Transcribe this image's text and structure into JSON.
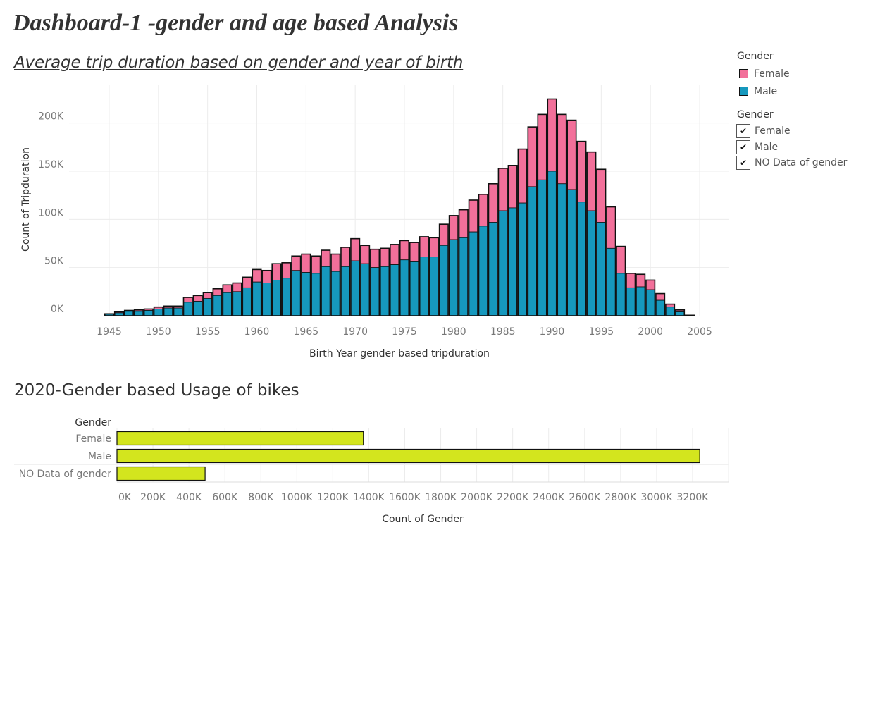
{
  "dashboard": {
    "title": "Dashboard-1 -gender and age based Analysis",
    "sheet1_title": "Average trip duration based on gender and year of birth",
    "sheet2_title": "2020-Gender based Usage of bikes"
  },
  "legend": {
    "title": "Gender",
    "items": [
      {
        "label": "Female",
        "color": "#f2709a"
      },
      {
        "label": "Male",
        "color": "#1698bd"
      }
    ]
  },
  "filter": {
    "title": "Gender",
    "items": [
      {
        "label": "NO Data of gender",
        "checked": true
      },
      {
        "label": "Female",
        "checked": true
      },
      {
        "label": "Male",
        "checked": true
      }
    ],
    "check_glyph": "✔"
  },
  "chart_data": [
    {
      "type": "bar",
      "stacked": true,
      "xlabel": "Birth Year  gender based tripduration",
      "ylabel": "Count of Tripduration",
      "ylim": [
        0,
        240000
      ],
      "yticks": [
        0,
        50000,
        100000,
        150000,
        200000
      ],
      "ytick_labels": [
        "0K",
        "50K",
        "100K",
        "150K",
        "200K"
      ],
      "xticks": [
        1945,
        1950,
        1955,
        1960,
        1965,
        1970,
        1975,
        1980,
        1985,
        1990,
        1995,
        2000,
        2005
      ],
      "grid": true,
      "legend_position": "top-right",
      "x": [
        1945,
        1946,
        1947,
        1948,
        1949,
        1950,
        1951,
        1952,
        1953,
        1954,
        1955,
        1956,
        1957,
        1958,
        1959,
        1960,
        1961,
        1962,
        1963,
        1964,
        1965,
        1966,
        1967,
        1968,
        1969,
        1970,
        1971,
        1972,
        1973,
        1974,
        1975,
        1976,
        1977,
        1978,
        1979,
        1980,
        1981,
        1982,
        1983,
        1984,
        1985,
        1986,
        1987,
        1988,
        1989,
        1990,
        1991,
        1992,
        1993,
        1994,
        1995,
        1996,
        1997,
        1998,
        1999,
        2000,
        2001,
        2002,
        2003,
        2004
      ],
      "series": [
        {
          "name": "Male",
          "color": "#1698bd",
          "values": [
            1500,
            3000,
            4500,
            4500,
            5500,
            7000,
            8000,
            8000,
            14000,
            15000,
            18000,
            21000,
            24000,
            25000,
            29000,
            35000,
            34000,
            37000,
            39000,
            47000,
            45000,
            44000,
            51000,
            46000,
            51000,
            57000,
            54000,
            50000,
            51000,
            53000,
            58000,
            56000,
            61000,
            61000,
            73000,
            79000,
            81000,
            87000,
            93000,
            97000,
            109000,
            112000,
            117000,
            134000,
            141000,
            150000,
            137000,
            131000,
            118000,
            109000,
            97000,
            70000,
            44000,
            29000,
            30000,
            27000,
            16000,
            9000,
            4000,
            500
          ]
        },
        {
          "name": "Female",
          "color": "#f2709a",
          "values": [
            500,
            1000,
            1000,
            1500,
            1500,
            2000,
            2000,
            2000,
            5000,
            6000,
            6000,
            7000,
            8000,
            9000,
            11000,
            13000,
            13000,
            17000,
            16000,
            15000,
            19000,
            18000,
            17000,
            18000,
            20000,
            23000,
            19000,
            19000,
            19000,
            21000,
            20000,
            20000,
            21000,
            20000,
            22000,
            25000,
            29000,
            33000,
            33000,
            40000,
            44000,
            44000,
            56000,
            62000,
            68000,
            75000,
            72000,
            72000,
            63000,
            61000,
            55000,
            43000,
            28000,
            15000,
            13000,
            10000,
            7000,
            3000,
            2000,
            0
          ]
        }
      ]
    },
    {
      "type": "bar",
      "orientation": "horizontal",
      "categories": [
        "Female",
        "Male",
        "NO Data of gender"
      ],
      "category_header": "Gender",
      "values": [
        1370000,
        3240000,
        490000
      ],
      "color": "#d3e51e",
      "xlabel": "Count of Gender",
      "xlim": [
        0,
        3400000
      ],
      "xticks": [
        0,
        200000,
        400000,
        600000,
        800000,
        1000000,
        1200000,
        1400000,
        1600000,
        1800000,
        2000000,
        2200000,
        2400000,
        2600000,
        2800000,
        3000000,
        3200000
      ],
      "xtick_labels": [
        "0K",
        "200K",
        "400K",
        "600K",
        "800K",
        "1000K",
        "1200K",
        "1400K",
        "1600K",
        "1800K",
        "2000K",
        "2200K",
        "2400K",
        "2600K",
        "2800K",
        "3000K",
        "3200K"
      ],
      "grid": true
    }
  ]
}
